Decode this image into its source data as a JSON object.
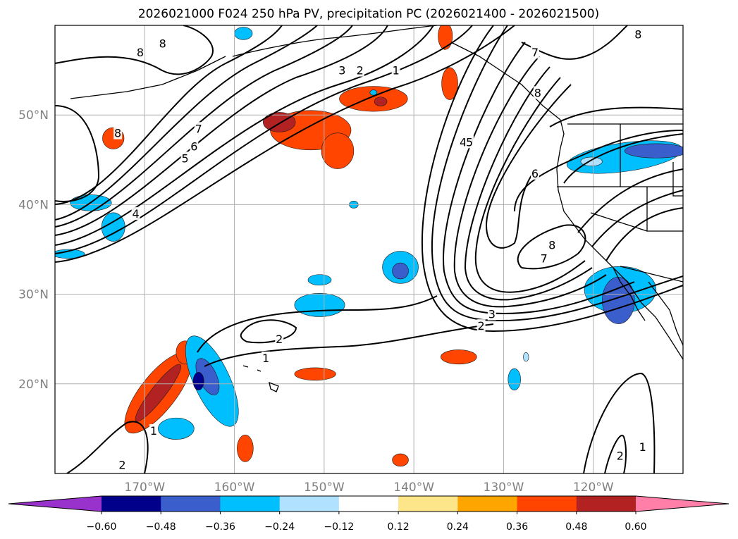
{
  "chart_data": {
    "type": "map",
    "title": "2026021000 F024 250 hPa PV, precipitation PC (2026021400 - 2026021500)",
    "projection": "PlateCarree",
    "extent": {
      "lon": [
        -180,
        -110
      ],
      "lat": [
        10,
        60
      ]
    },
    "grid": true,
    "lon_ticks": [
      {
        "value": -170,
        "label": "170°W"
      },
      {
        "value": -160,
        "label": "160°W"
      },
      {
        "value": -150,
        "label": "150°W"
      },
      {
        "value": -140,
        "label": "140°W"
      },
      {
        "value": -130,
        "label": "130°W"
      },
      {
        "value": -120,
        "label": "120°W"
      }
    ],
    "lat_ticks": [
      {
        "value": 20,
        "label": "20°N"
      },
      {
        "value": 30,
        "label": "30°N"
      },
      {
        "value": 40,
        "label": "40°N"
      },
      {
        "value": 50,
        "label": "50°N"
      }
    ],
    "colorbar": {
      "orientation": "horizontal",
      "extend": "both",
      "levels": [
        -0.6,
        -0.48,
        -0.36,
        -0.24,
        -0.12,
        0.12,
        0.24,
        0.36,
        0.48,
        0.6
      ],
      "tick_labels": [
        "−0.60",
        "−0.48",
        "−0.36",
        "−0.24",
        "−0.12",
        "0.12",
        "0.24",
        "0.36",
        "0.48",
        "0.60"
      ],
      "colors": [
        "#9932cc",
        "#00008b",
        "#3a5fcd",
        "#00bfff",
        "#b0e2ff",
        "#ffffff",
        "#fde68a",
        "#ffa500",
        "#ff4500",
        "#b22222",
        "#ff7fa8"
      ]
    },
    "pv_contour_labels": [
      {
        "lon": -168,
        "lat": 58,
        "text": "8"
      },
      {
        "lon": -173,
        "lat": 48,
        "text": "8"
      },
      {
        "lon": -164,
        "lat": 48.5,
        "text": "7"
      },
      {
        "lon": -164.5,
        "lat": 46.5,
        "text": "6"
      },
      {
        "lon": -165.5,
        "lat": 45.2,
        "text": "5"
      },
      {
        "lon": -171,
        "lat": 39,
        "text": "4"
      },
      {
        "lon": -148,
        "lat": 55,
        "text": "3"
      },
      {
        "lon": -146,
        "lat": 55,
        "text": "2"
      },
      {
        "lon": -142,
        "lat": 55,
        "text": "1"
      },
      {
        "lon": -126.5,
        "lat": 57,
        "text": "7"
      },
      {
        "lon": -126.2,
        "lat": 52.5,
        "text": "8"
      },
      {
        "lon": -134.5,
        "lat": 47,
        "text": "4"
      },
      {
        "lon": -133.8,
        "lat": 47,
        "text": "5"
      },
      {
        "lon": -126.5,
        "lat": 43.5,
        "text": "6"
      },
      {
        "lon": -124.6,
        "lat": 35.5,
        "text": "8"
      },
      {
        "lon": -125.5,
        "lat": 34,
        "text": "7"
      },
      {
        "lon": -132.5,
        "lat": 26.5,
        "text": "2"
      },
      {
        "lon": -131.3,
        "lat": 27.8,
        "text": "3"
      },
      {
        "lon": -155,
        "lat": 25,
        "text": "2"
      },
      {
        "lon": -156.5,
        "lat": 22.9,
        "text": "1"
      },
      {
        "lon": -169,
        "lat": 14.8,
        "text": "1"
      },
      {
        "lon": -172.5,
        "lat": 11,
        "text": "2"
      },
      {
        "lon": -117,
        "lat": 12,
        "text": "2"
      },
      {
        "lon": -114.5,
        "lat": 13,
        "text": "1"
      },
      {
        "lon": -170.5,
        "lat": 57,
        "text": "8"
      },
      {
        "lon": -115,
        "lat": 59,
        "text": "8"
      }
    ],
    "precip_areas": [
      {
        "lon": -173.5,
        "lat": 47.4,
        "rx": 1.2,
        "ry": 1.2,
        "value": 0.36
      },
      {
        "lon": -151.5,
        "lat": 48.3,
        "rx": 4.5,
        "ry": 2.2,
        "value": 0.36
      },
      {
        "lon": -155,
        "lat": 49.2,
        "rx": 1.8,
        "ry": 1.1,
        "value": 0.48
      },
      {
        "lon": -148.5,
        "lat": 46,
        "rx": 1.8,
        "ry": 2.0,
        "value": 0.36
      },
      {
        "lon": -144.5,
        "lat": 51.8,
        "rx": 3.8,
        "ry": 1.4,
        "value": 0.36
      },
      {
        "lon": -143.7,
        "lat": 51.5,
        "rx": 0.7,
        "ry": 0.5,
        "value": 0.48
      },
      {
        "lon": -136.5,
        "lat": 58.8,
        "rx": 0.8,
        "ry": 1.5,
        "value": 0.36
      },
      {
        "lon": -136,
        "lat": 53.5,
        "rx": 0.9,
        "ry": 1.8,
        "value": 0.36
      },
      {
        "lon": -168.5,
        "lat": 19,
        "rx": 2.0,
        "ry": 5.5,
        "value": 0.36,
        "rot": 38
      },
      {
        "lon": -168.5,
        "lat": 19,
        "rx": 0.8,
        "ry": 4.0,
        "value": 0.48,
        "rot": 38
      },
      {
        "lon": -165.5,
        "lat": 23.5,
        "rx": 1.0,
        "ry": 1.3,
        "value": 0.36
      },
      {
        "lon": -158.8,
        "lat": 12.8,
        "rx": 0.9,
        "ry": 1.5,
        "value": 0.36
      },
      {
        "lon": -151,
        "lat": 21.1,
        "rx": 2.3,
        "ry": 0.7,
        "value": 0.36
      },
      {
        "lon": -135,
        "lat": 23,
        "rx": 2.0,
        "ry": 0.8,
        "value": 0.36
      },
      {
        "lon": -141.5,
        "lat": 11.5,
        "rx": 0.9,
        "ry": 0.7,
        "value": 0.36
      },
      {
        "lon": -176,
        "lat": 40.2,
        "rx": 2.3,
        "ry": 0.9,
        "value": -0.36
      },
      {
        "lon": -173.5,
        "lat": 37.5,
        "rx": 1.3,
        "ry": 1.6,
        "value": -0.36
      },
      {
        "lon": -178.5,
        "lat": 34.5,
        "rx": 1.8,
        "ry": 0.5,
        "value": -0.36
      },
      {
        "lon": -162.5,
        "lat": 20.3,
        "rx": 2.0,
        "ry": 5.5,
        "value": -0.36,
        "rot": -25
      },
      {
        "lon": -163,
        "lat": 20.8,
        "rx": 1.0,
        "ry": 2.2,
        "value": -0.48,
        "rot": -25
      },
      {
        "lon": -164,
        "lat": 20.3,
        "rx": 0.6,
        "ry": 1.0,
        "value": -0.6
      },
      {
        "lon": -166.5,
        "lat": 15,
        "rx": 2.0,
        "ry": 1.2,
        "value": -0.36
      },
      {
        "lon": -150.5,
        "lat": 28.8,
        "rx": 2.8,
        "ry": 1.3,
        "value": -0.36
      },
      {
        "lon": -150.5,
        "lat": 31.6,
        "rx": 1.3,
        "ry": 0.6,
        "value": -0.36
      },
      {
        "lon": -141.5,
        "lat": 33,
        "rx": 2.0,
        "ry": 1.8,
        "value": -0.36
      },
      {
        "lon": -141.5,
        "lat": 32.6,
        "rx": 0.9,
        "ry": 0.9,
        "value": -0.48
      },
      {
        "lon": -128.8,
        "lat": 20.5,
        "rx": 0.7,
        "ry": 1.2,
        "value": -0.36
      },
      {
        "lon": -127.5,
        "lat": 23,
        "rx": 0.3,
        "ry": 0.5,
        "value": -0.24
      },
      {
        "lon": -117,
        "lat": 30.5,
        "rx": 4.0,
        "ry": 2.6,
        "value": -0.36
      },
      {
        "lon": -117.2,
        "lat": 29.3,
        "rx": 1.8,
        "ry": 2.6,
        "value": -0.48
      },
      {
        "lon": -116.5,
        "lat": 45.3,
        "rx": 6.5,
        "ry": 1.6,
        "value": -0.36,
        "rot": -8
      },
      {
        "lon": -113,
        "lat": 46,
        "rx": 3.5,
        "ry": 0.8,
        "value": -0.48
      },
      {
        "lon": -120.2,
        "lat": 44.8,
        "rx": 1.2,
        "ry": 0.5,
        "value": -0.24
      },
      {
        "lon": -159,
        "lat": 59.1,
        "rx": 1.0,
        "ry": 0.7,
        "value": -0.36
      },
      {
        "lon": -146.7,
        "lat": 40,
        "rx": 0.5,
        "ry": 0.4,
        "value": -0.36
      },
      {
        "lon": -144.5,
        "lat": 52.5,
        "rx": 0.4,
        "ry": 0.3,
        "value": -0.36
      }
    ]
  }
}
